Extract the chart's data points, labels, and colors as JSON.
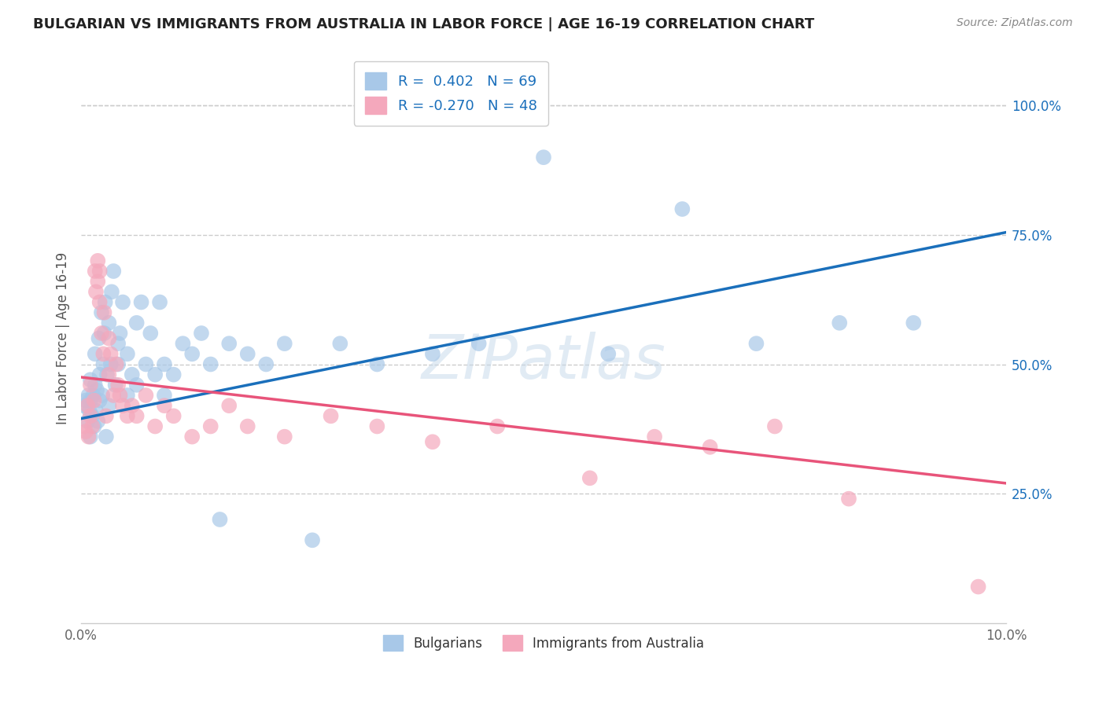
{
  "title": "BULGARIAN VS IMMIGRANTS FROM AUSTRALIA IN LABOR FORCE | AGE 16-19 CORRELATION CHART",
  "source": "Source: ZipAtlas.com",
  "ylabel": "In Labor Force | Age 16-19",
  "xlim": [
    0.0,
    0.1
  ],
  "ylim": [
    0.0,
    1.1
  ],
  "x_ticks": [
    0.0,
    0.02,
    0.04,
    0.06,
    0.08,
    0.1
  ],
  "x_tick_labels": [
    "0.0%",
    "",
    "",
    "",
    "",
    "10.0%"
  ],
  "y_ticks_right": [
    0.25,
    0.5,
    0.75,
    1.0
  ],
  "y_tick_labels_right": [
    "25.0%",
    "50.0%",
    "75.0%",
    "100.0%"
  ],
  "blue_color": "#a8c8e8",
  "pink_color": "#f4a8bc",
  "blue_line_color": "#1a6fbb",
  "pink_line_color": "#e8547a",
  "legend_label_blue": "R =  0.402   N = 69",
  "legend_label_pink": "R = -0.270   N = 48",
  "legend_label_blue_bottom": "Bulgarians",
  "legend_label_pink_bottom": "Immigrants from Australia",
  "watermark": "ZIPatlas",
  "title_color": "#222222",
  "source_color": "#888888",
  "blue_line_x0": 0.0,
  "blue_line_y0": 0.395,
  "blue_line_x1": 0.1,
  "blue_line_y1": 0.755,
  "pink_line_x0": 0.0,
  "pink_line_y0": 0.475,
  "pink_line_x1": 0.1,
  "pink_line_y1": 0.27,
  "blue_scatter_x": [
    0.0003,
    0.0005,
    0.0007,
    0.0008,
    0.0009,
    0.001,
    0.001,
    0.001,
    0.0012,
    0.0013,
    0.0014,
    0.0015,
    0.0015,
    0.0016,
    0.0017,
    0.0018,
    0.0019,
    0.002,
    0.002,
    0.0022,
    0.0023,
    0.0024,
    0.0025,
    0.0026,
    0.0027,
    0.0028,
    0.003,
    0.003,
    0.0032,
    0.0033,
    0.0035,
    0.0037,
    0.004,
    0.004,
    0.0042,
    0.0045,
    0.005,
    0.005,
    0.0055,
    0.006,
    0.006,
    0.0065,
    0.007,
    0.0075,
    0.008,
    0.0085,
    0.009,
    0.009,
    0.01,
    0.011,
    0.012,
    0.013,
    0.014,
    0.015,
    0.016,
    0.018,
    0.02,
    0.022,
    0.025,
    0.028,
    0.032,
    0.038,
    0.043,
    0.05,
    0.057,
    0.065,
    0.073,
    0.082,
    0.09
  ],
  "blue_scatter_y": [
    0.42,
    0.43,
    0.39,
    0.44,
    0.41,
    0.36,
    0.43,
    0.47,
    0.4,
    0.44,
    0.38,
    0.46,
    0.52,
    0.41,
    0.45,
    0.39,
    0.55,
    0.43,
    0.48,
    0.6,
    0.44,
    0.5,
    0.56,
    0.62,
    0.36,
    0.48,
    0.42,
    0.58,
    0.5,
    0.64,
    0.68,
    0.46,
    0.54,
    0.5,
    0.56,
    0.62,
    0.44,
    0.52,
    0.48,
    0.46,
    0.58,
    0.62,
    0.5,
    0.56,
    0.48,
    0.62,
    0.44,
    0.5,
    0.48,
    0.54,
    0.52,
    0.56,
    0.5,
    0.2,
    0.54,
    0.52,
    0.5,
    0.54,
    0.16,
    0.54,
    0.5,
    0.52,
    0.54,
    0.9,
    0.52,
    0.8,
    0.54,
    0.58,
    0.58
  ],
  "pink_scatter_x": [
    0.0003,
    0.0005,
    0.0007,
    0.0008,
    0.001,
    0.001,
    0.0012,
    0.0014,
    0.0015,
    0.0016,
    0.0018,
    0.0018,
    0.002,
    0.002,
    0.0022,
    0.0024,
    0.0025,
    0.0027,
    0.003,
    0.003,
    0.0032,
    0.0035,
    0.0038,
    0.004,
    0.0042,
    0.0045,
    0.005,
    0.0055,
    0.006,
    0.007,
    0.008,
    0.009,
    0.01,
    0.012,
    0.014,
    0.016,
    0.018,
    0.022,
    0.027,
    0.032,
    0.038,
    0.045,
    0.055,
    0.062,
    0.068,
    0.075,
    0.083,
    0.097
  ],
  "pink_scatter_y": [
    0.38,
    0.37,
    0.42,
    0.36,
    0.4,
    0.46,
    0.38,
    0.43,
    0.68,
    0.64,
    0.7,
    0.66,
    0.62,
    0.68,
    0.56,
    0.52,
    0.6,
    0.4,
    0.55,
    0.48,
    0.52,
    0.44,
    0.5,
    0.46,
    0.44,
    0.42,
    0.4,
    0.42,
    0.4,
    0.44,
    0.38,
    0.42,
    0.4,
    0.36,
    0.38,
    0.42,
    0.38,
    0.36,
    0.4,
    0.38,
    0.35,
    0.38,
    0.28,
    0.36,
    0.34,
    0.38,
    0.24,
    0.07
  ]
}
